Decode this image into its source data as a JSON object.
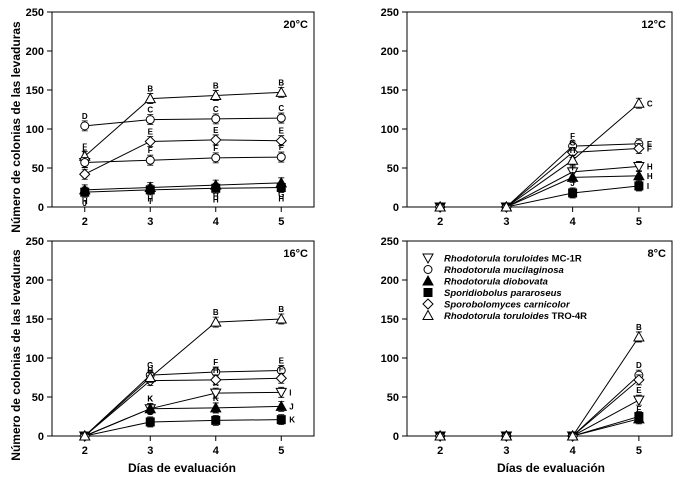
{
  "chart_data": [
    {
      "type": "line",
      "title": "20°C",
      "xlabel": "",
      "ylabel": "Número de colonias de las levaduras",
      "x": [
        2,
        3,
        4,
        5
      ],
      "xlim": [
        1.5,
        5.5
      ],
      "ylim": [
        0,
        250
      ],
      "yticks": [
        0,
        50,
        100,
        150,
        200,
        250
      ],
      "series": [
        {
          "name": "Rhodotorula toruloides MC-1R",
          "marker": "triangle-down-open",
          "values": [
            57,
            null,
            null,
            null
          ],
          "labels": [
            "F",
            "",
            "",
            ""
          ]
        },
        {
          "name": "Rhodotorula mucilaginosa",
          "marker": "circle-open",
          "values": [
            104,
            112,
            113,
            114
          ],
          "labels": [
            "D",
            "C",
            "C",
            "C"
          ]
        },
        {
          "name": "Rhodotorula diobovata",
          "marker": "triangle-up-filled",
          "values": [
            22,
            25,
            28,
            31
          ],
          "labels": [
            "H",
            "H",
            "H",
            "G"
          ]
        },
        {
          "name": "Sporidiobolus pararoseus",
          "marker": "square-filled",
          "values": [
            19,
            22,
            24,
            25
          ],
          "labels": [
            "J",
            "I",
            "H",
            "H"
          ]
        },
        {
          "name": "Sporobolomyces carnicolor",
          "marker": "diamond-open",
          "values": [
            42,
            84,
            86,
            85
          ],
          "labels": [
            "G",
            "E",
            "E",
            "E"
          ]
        },
        {
          "name": "Rhodotorula toruloides TRO-4R",
          "marker": "triangle-up-open",
          "values": [
            65,
            139,
            143,
            147
          ],
          "labels": [
            "F",
            "B",
            "B",
            "B"
          ]
        },
        {
          "name": "",
          "marker": "circle-open",
          "values": [
            57,
            60,
            63,
            64
          ],
          "labels": [
            "",
            "F",
            "F",
            "F"
          ]
        }
      ]
    },
    {
      "type": "line",
      "title": "12°C",
      "xlabel": "",
      "ylabel": "",
      "x": [
        2,
        3,
        4,
        5
      ],
      "xlim": [
        1.5,
        5.5
      ],
      "ylim": [
        0,
        250
      ],
      "yticks": [
        0,
        50,
        100,
        150,
        200,
        250
      ],
      "series": [
        {
          "name": "Rhodotorula toruloides MC-1R",
          "marker": "triangle-down-open",
          "values": [
            0,
            0,
            45,
            52
          ],
          "labels": [
            "",
            "",
            "H",
            "H"
          ]
        },
        {
          "name": "Rhodotorula mucilaginosa",
          "marker": "circle-open",
          "values": [
            0,
            0,
            78,
            81
          ],
          "labels": [
            "",
            "",
            "F",
            "E"
          ]
        },
        {
          "name": "Rhodotorula diobovata",
          "marker": "triangle-up-filled",
          "values": [
            0,
            0,
            38,
            40
          ],
          "labels": [
            "",
            "",
            "I",
            "H"
          ]
        },
        {
          "name": "Sporidiobolus pararoseus",
          "marker": "square-filled",
          "values": [
            0,
            0,
            18,
            27
          ],
          "labels": [
            "",
            "",
            "J",
            "I"
          ]
        },
        {
          "name": "Sporobolomyces carnicolor",
          "marker": "diamond-open",
          "values": [
            0,
            0,
            70,
            75
          ],
          "labels": [
            "",
            "",
            "G",
            "F"
          ]
        },
        {
          "name": "Rhodotorula toruloides TRO-4R",
          "marker": "triangle-up-open",
          "values": [
            0,
            0,
            60,
            133
          ],
          "labels": [
            "",
            "",
            "H",
            "C"
          ]
        }
      ]
    },
    {
      "type": "line",
      "title": "16°C",
      "xlabel": "Días de evaluación",
      "ylabel": "Número de colonias de las levaduras",
      "x": [
        2,
        3,
        4,
        5
      ],
      "xlim": [
        1.5,
        5.5
      ],
      "ylim": [
        0,
        250
      ],
      "yticks": [
        0,
        50,
        100,
        150,
        200,
        250
      ],
      "series": [
        {
          "name": "Rhodotorula toruloides MC-1R",
          "marker": "triangle-down-open",
          "values": [
            0,
            35,
            55,
            56
          ],
          "labels": [
            "",
            "K",
            "K",
            "I"
          ]
        },
        {
          "name": "Rhodotorula mucilaginosa",
          "marker": "circle-open",
          "values": [
            0,
            78,
            82,
            84
          ],
          "labels": [
            "",
            "G",
            "F",
            "E"
          ]
        },
        {
          "name": "Rhodotorula diobovata",
          "marker": "triangle-up-filled",
          "values": [
            0,
            35,
            36,
            38
          ],
          "labels": [
            "",
            "K",
            "K",
            "J"
          ]
        },
        {
          "name": "Sporidiobolus pararoseus",
          "marker": "square-filled",
          "values": [
            0,
            18,
            20,
            21
          ],
          "labels": [
            "",
            "L",
            "K",
            "K"
          ]
        },
        {
          "name": "Sporobolomyces carnicolor",
          "marker": "diamond-open",
          "values": [
            0,
            71,
            72,
            74
          ],
          "labels": [
            "",
            "H",
            "H",
            "F"
          ]
        },
        {
          "name": "Rhodotorula toruloides TRO-4R",
          "marker": "triangle-up-open",
          "values": [
            0,
            75,
            146,
            150
          ],
          "labels": [
            "",
            "",
            "B",
            "B"
          ]
        }
      ]
    },
    {
      "type": "line",
      "title": "8°C",
      "xlabel": "Días de evaluación",
      "ylabel": "",
      "x": [
        2,
        3,
        4,
        5
      ],
      "xlim": [
        1.5,
        5.5
      ],
      "ylim": [
        0,
        250
      ],
      "yticks": [
        0,
        50,
        100,
        150,
        200,
        250
      ],
      "legend": "top-right",
      "series": [
        {
          "name": "Rhodotorula toruloides MC-1R",
          "marker": "triangle-down-open",
          "values": [
            0,
            0,
            0,
            46
          ],
          "labels": [
            "",
            "",
            "",
            "E"
          ]
        },
        {
          "name": "Rhodotorula mucilaginosa",
          "marker": "circle-open",
          "values": [
            0,
            0,
            0,
            78
          ],
          "labels": [
            "",
            "",
            "",
            "D"
          ]
        },
        {
          "name": "Rhodotorula diobovata",
          "marker": "triangle-up-filled",
          "values": [
            0,
            0,
            0,
            22
          ],
          "labels": [
            "",
            "",
            "",
            "F"
          ]
        },
        {
          "name": "Sporidiobolus pararoseus",
          "marker": "square-filled",
          "values": [
            0,
            0,
            0,
            25
          ],
          "labels": [
            "",
            "",
            "",
            ""
          ]
        },
        {
          "name": "Sporobolomyces carnicolor",
          "marker": "diamond-open",
          "values": [
            0,
            0,
            0,
            72
          ],
          "labels": [
            "",
            "",
            "",
            ""
          ]
        },
        {
          "name": "Rhodotorula toruloides TRO-4R",
          "marker": "triangle-up-open",
          "values": [
            0,
            0,
            0,
            127
          ],
          "labels": [
            "",
            "",
            "",
            "B"
          ]
        }
      ]
    }
  ],
  "legend": {
    "entries": [
      {
        "genus": "Rhodotorula toruloides",
        "strain": "MC-1R",
        "marker": "triangle-down-open"
      },
      {
        "genus": "Rhodotorula mucilaginosa",
        "strain": "",
        "marker": "circle-open"
      },
      {
        "genus": "Rhodotorula diobovata",
        "strain": "",
        "marker": "triangle-up-filled"
      },
      {
        "genus": "Sporidiobolus pararoseus",
        "strain": "",
        "marker": "square-filled"
      },
      {
        "genus": "Sporobolomyces carnicolor",
        "strain": "",
        "marker": "diamond-open"
      },
      {
        "genus": "Rhodotorula toruloides",
        "strain": "TRO-4R",
        "marker": "triangle-up-open"
      }
    ]
  }
}
